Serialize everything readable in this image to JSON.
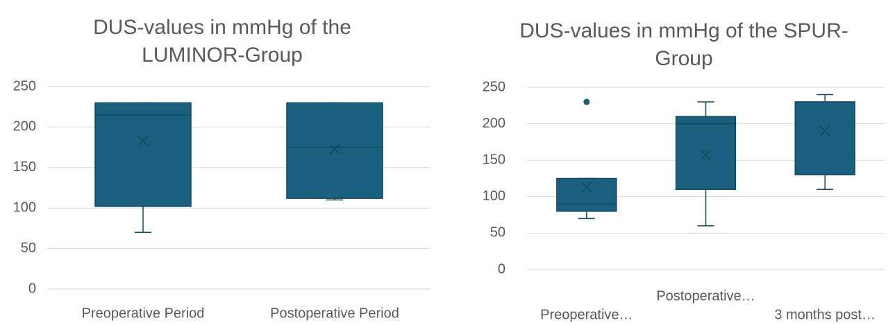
{
  "chart_data": [
    {
      "type": "box",
      "title": "DUS-values in mmHg of the LUMINOR-Group",
      "categories": [
        "Preoperative Period",
        "Postoperative Period"
      ],
      "boxes": [
        {
          "min": 70,
          "q1": 102,
          "median": 215,
          "q3": 230,
          "max": 230,
          "mean": 183,
          "outliers": []
        },
        {
          "min": 110,
          "q1": 112,
          "median": 175,
          "q3": 230,
          "max": 230,
          "mean": 173,
          "outliers": []
        }
      ],
      "color": "#1b5f7e",
      "ylim": [
        0,
        250
      ],
      "yticks": [
        0,
        50,
        100,
        150,
        200,
        250
      ],
      "grid": true
    },
    {
      "type": "box",
      "title": "DUS-values in mmHg of the SPUR-Group",
      "categories": [
        "Preoperative…",
        "Postoperative…",
        "3 months post…"
      ],
      "boxes": [
        {
          "min": 70,
          "q1": 80,
          "median": 90,
          "q3": 125,
          "max": 125,
          "mean": 113,
          "outliers": [
            230
          ]
        },
        {
          "min": 60,
          "q1": 110,
          "median": 200,
          "q3": 210,
          "max": 230,
          "mean": 157,
          "outliers": []
        },
        {
          "min": 110,
          "q1": 130,
          "median": 230,
          "q3": 230,
          "max": 240,
          "mean": 190,
          "outliers": []
        }
      ],
      "color": "#1b5f7e",
      "ylim": [
        0,
        250
      ],
      "yticks": [
        0,
        50,
        100,
        150,
        200,
        250
      ],
      "grid": true
    }
  ]
}
